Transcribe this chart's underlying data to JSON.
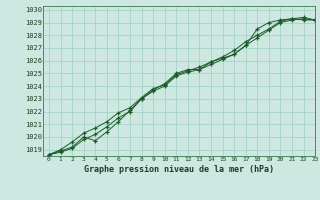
{
  "title": "Graphe pression niveau de la mer (hPa)",
  "bg_color": "#cce8e0",
  "grid_color": "#9ecfc4",
  "line_color": "#1a5c28",
  "xlim": [
    -0.5,
    23
  ],
  "ylim": [
    1018.5,
    1030.3
  ],
  "yticks": [
    1019,
    1020,
    1021,
    1022,
    1023,
    1024,
    1025,
    1026,
    1027,
    1028,
    1029,
    1030
  ],
  "xticks": [
    0,
    1,
    2,
    3,
    4,
    5,
    6,
    7,
    8,
    9,
    10,
    11,
    12,
    13,
    14,
    15,
    16,
    17,
    18,
    19,
    20,
    21,
    22,
    23
  ],
  "series": [
    [
      1018.6,
      1018.9,
      1019.2,
      1020.0,
      1019.7,
      1020.4,
      1021.2,
      1022.1,
      1023.0,
      1023.7,
      1024.2,
      1025.0,
      1025.3,
      1025.3,
      1025.9,
      1026.2,
      1026.5,
      1027.2,
      1028.5,
      1029.0,
      1029.2,
      1029.3,
      1029.2,
      1029.2
    ],
    [
      1018.6,
      1019.0,
      1019.6,
      1020.3,
      1020.7,
      1021.2,
      1021.9,
      1022.3,
      1023.1,
      1023.8,
      1024.1,
      1024.9,
      1025.2,
      1025.5,
      1025.9,
      1026.3,
      1026.8,
      1027.5,
      1028.0,
      1028.5,
      1029.1,
      1029.3,
      1029.4,
      1029.2
    ],
    [
      1018.6,
      1018.8,
      1019.1,
      1019.8,
      1020.2,
      1020.8,
      1021.5,
      1022.0,
      1023.0,
      1023.6,
      1024.0,
      1024.8,
      1025.1,
      1025.3,
      1025.7,
      1026.1,
      1026.5,
      1027.2,
      1027.8,
      1028.4,
      1029.0,
      1029.2,
      1029.3,
      1029.2
    ]
  ]
}
